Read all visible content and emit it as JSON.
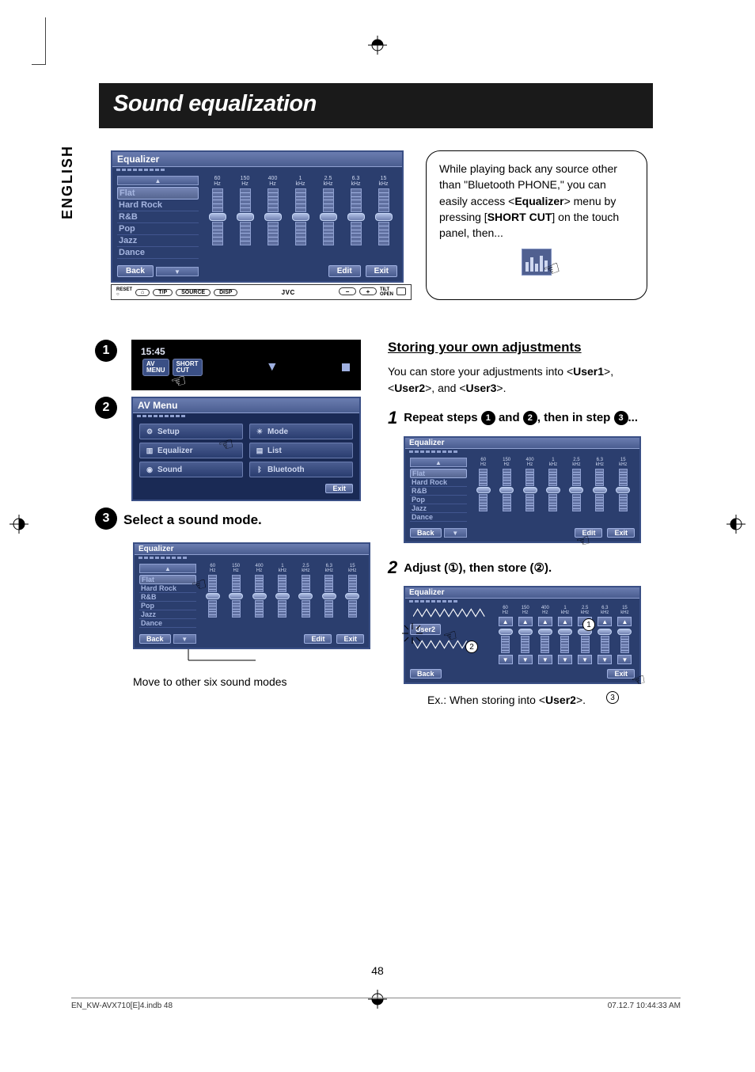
{
  "language_tab": "ENGLISH",
  "title": "Sound equalization",
  "page_number": "48",
  "footer_left": "EN_KW-AVX710[E]4.indb   48",
  "footer_right": "07.12.7   10:44:33 AM",
  "eq_panel": {
    "header": "Equalizer",
    "modes": [
      "Flat",
      "Hard Rock",
      "R&B",
      "Pop",
      "Jazz",
      "Dance"
    ],
    "selected_index": 0,
    "freqs": [
      {
        "n": "60",
        "u": "Hz"
      },
      {
        "n": "150",
        "u": "Hz"
      },
      {
        "n": "400",
        "u": "Hz"
      },
      {
        "n": "1",
        "u": "kHz"
      },
      {
        "n": "2.5",
        "u": "kHz"
      },
      {
        "n": "6.3",
        "u": "kHz"
      },
      {
        "n": "15",
        "u": "kHz"
      }
    ],
    "back_btn": "Back",
    "edit_btn": "Edit",
    "exit_btn": "Exit"
  },
  "device_bar_brand": "JVC",
  "callout": {
    "line1": "While playing back any source other than \"Bluetooth PHONE,\" you can easily access <",
    "bold1": "Equalizer",
    "line2": "> menu by pressing [",
    "bold2": "SHORT CUT",
    "line3": "] on the touch panel, then..."
  },
  "media": {
    "time": "15:45",
    "av_menu": "AV\nMENU",
    "short_cut": "SHORT\nCUT"
  },
  "av_menu": {
    "header": "AV Menu",
    "items": [
      {
        "icon": "⚙",
        "label": "Setup"
      },
      {
        "icon": "☀",
        "label": "Mode"
      },
      {
        "icon": "▥",
        "label": "Equalizer"
      },
      {
        "icon": "▤",
        "label": "List"
      },
      {
        "icon": "◉",
        "label": "Sound"
      },
      {
        "icon": "ᛒ",
        "label": "Bluetooth"
      }
    ],
    "exit": "Exit"
  },
  "step3_title": "Select a sound mode.",
  "step3_note": "Move to other six sound modes",
  "storing": {
    "title": "Storing your own adjustments",
    "body_pre": "You can store your adjustments into <",
    "u1": "User1",
    "mid1": ">, <",
    "u2": "User2",
    "mid2": ">, and <",
    "u3": "User3",
    "tail": ">.",
    "step1_pre": "Repeat steps ",
    "step1_mid": " and ",
    "step1_tail": ", then in step ",
    "step1_end": "...",
    "step2": "Adjust (①), then store (②).",
    "user2_label": "User2",
    "ex_pre": "Ex.: When storing into <",
    "ex_bold": "User2",
    "ex_tail": ">."
  },
  "colors": {
    "panel_bg": "#2b3e6e",
    "panel_border": "#3a4f85",
    "header_grad_top": "#6b7db0",
    "header_grad_bot": "#4a5d90",
    "text_light": "#cfd8f0"
  }
}
